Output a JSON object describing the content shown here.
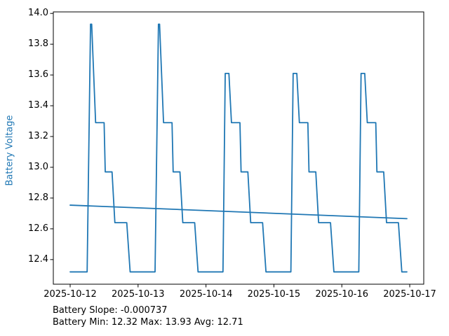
{
  "annotations": {
    "line1": "Battery Slope: -0.000737",
    "line2": "Battery Min: 12.32 Max: 13.93 Avg: 12.71"
  },
  "stats": {
    "slope": -0.000737,
    "min": 12.32,
    "max": 13.93,
    "avg": 12.71
  },
  "chart_data": {
    "type": "line",
    "title": "",
    "xlabel": "",
    "ylabel": "Battery Voltage",
    "ylabel_color": "#1f77b4",
    "line_color": "#1f77b4",
    "background_color": "#ffffff",
    "grid": false,
    "legend": "none",
    "x_unit": "hours since 2025-10-12 00:00",
    "xlim": [
      -5.95,
      124.95
    ],
    "ylim": [
      12.24,
      14.01
    ],
    "x_ticks": [
      {
        "hour": 0,
        "label": "2025-10-12"
      },
      {
        "hour": 24,
        "label": "2025-10-13"
      },
      {
        "hour": 48,
        "label": "2025-10-14"
      },
      {
        "hour": 72,
        "label": "2025-10-15"
      },
      {
        "hour": 96,
        "label": "2025-10-16"
      },
      {
        "hour": 120,
        "label": "2025-10-17"
      }
    ],
    "y_ticks": [
      {
        "value": 12.4,
        "label": "12.4"
      },
      {
        "value": 12.6,
        "label": "12.6"
      },
      {
        "value": 12.8,
        "label": "12.8"
      },
      {
        "value": 13.0,
        "label": "13.0"
      },
      {
        "value": 13.2,
        "label": "13.2"
      },
      {
        "value": 13.4,
        "label": "13.4"
      },
      {
        "value": 13.6,
        "label": "13.6"
      },
      {
        "value": 13.8,
        "label": "13.8"
      },
      {
        "value": 14.0,
        "label": "14.0"
      }
    ],
    "series": [
      {
        "name": "battery_voltage",
        "color": "#1f77b4",
        "points": [
          [
            0,
            12.32
          ],
          [
            6,
            12.32
          ],
          [
            7.2,
            13.93
          ],
          [
            7.6,
            13.93
          ],
          [
            9,
            13.29
          ],
          [
            12,
            13.29
          ],
          [
            12.4,
            12.97
          ],
          [
            14.8,
            12.97
          ],
          [
            15.8,
            12.64
          ],
          [
            20,
            12.64
          ],
          [
            21.2,
            12.32
          ],
          [
            30,
            12.32
          ],
          [
            31.2,
            13.93
          ],
          [
            31.6,
            13.93
          ],
          [
            33,
            13.29
          ],
          [
            36,
            13.29
          ],
          [
            36.4,
            12.97
          ],
          [
            38.8,
            12.97
          ],
          [
            39.8,
            12.64
          ],
          [
            44,
            12.64
          ],
          [
            45.2,
            12.32
          ],
          [
            54,
            12.32
          ],
          [
            54.8,
            13.61
          ],
          [
            56.1,
            13.61
          ],
          [
            57,
            13.29
          ],
          [
            60,
            13.29
          ],
          [
            60.4,
            12.97
          ],
          [
            62.8,
            12.97
          ],
          [
            63.8,
            12.64
          ],
          [
            68,
            12.64
          ],
          [
            69.2,
            12.32
          ],
          [
            78,
            12.32
          ],
          [
            78.8,
            13.61
          ],
          [
            80.1,
            13.61
          ],
          [
            81,
            13.29
          ],
          [
            84,
            13.29
          ],
          [
            84.4,
            12.97
          ],
          [
            86.8,
            12.97
          ],
          [
            87.8,
            12.64
          ],
          [
            92,
            12.64
          ],
          [
            93.2,
            12.32
          ],
          [
            102,
            12.32
          ],
          [
            102.8,
            13.61
          ],
          [
            104.1,
            13.61
          ],
          [
            105,
            13.29
          ],
          [
            108,
            13.29
          ],
          [
            108.4,
            12.97
          ],
          [
            110.8,
            12.97
          ],
          [
            111.8,
            12.64
          ],
          [
            116,
            12.64
          ],
          [
            117.2,
            12.32
          ],
          [
            119,
            12.32
          ]
        ]
      },
      {
        "name": "battery_trend",
        "color": "#1f77b4",
        "points": [
          [
            0,
            12.754
          ],
          [
            119,
            12.666
          ]
        ]
      }
    ]
  }
}
